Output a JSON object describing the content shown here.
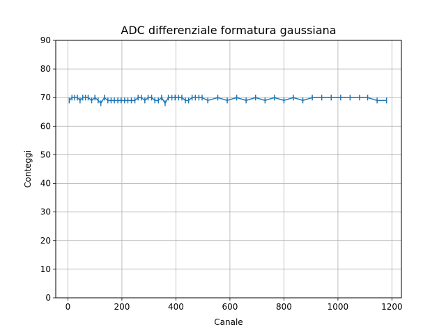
{
  "chart_data": {
    "type": "line",
    "title": "ADC differenziale formatura gaussiana",
    "xlabel": "Canale",
    "ylabel": "Conteggi",
    "xlim": [
      -45,
      1235
    ],
    "ylim": [
      0,
      90
    ],
    "xticks": [
      0,
      200,
      400,
      600,
      800,
      1000,
      1200
    ],
    "yticks": [
      0,
      10,
      20,
      30,
      40,
      50,
      60,
      70,
      80,
      90
    ],
    "grid": true,
    "color": "#1f77b4",
    "error_bars": true,
    "series": [
      {
        "x": [
          5,
          15,
          25,
          35,
          45,
          55,
          65,
          75,
          88,
          100,
          112,
          122,
          135,
          148,
          160,
          172,
          185,
          197,
          210,
          222,
          235,
          248,
          260,
          272,
          285,
          297,
          310,
          322,
          335,
          347,
          360,
          372,
          385,
          397,
          410,
          422,
          435,
          447,
          460,
          472,
          485,
          497,
          518,
          555,
          590,
          625,
          660,
          695,
          730,
          765,
          800,
          835,
          870,
          905,
          940,
          975,
          1010,
          1045,
          1080,
          1110,
          1145,
          1180
        ],
        "y": [
          69,
          70,
          70,
          70,
          69,
          70,
          70,
          70,
          69,
          70,
          69,
          68,
          70,
          69,
          69,
          69,
          69,
          69,
          69,
          69,
          69,
          69,
          70,
          70,
          69,
          70,
          70,
          69,
          69,
          70,
          68,
          70,
          70,
          70,
          70,
          70,
          69,
          69,
          70,
          70,
          70,
          70,
          69,
          70,
          69,
          70,
          69,
          70,
          69,
          70,
          69,
          70,
          69,
          70,
          70,
          70,
          70,
          70,
          70,
          70,
          69,
          69
        ],
        "yerr": 1
      }
    ]
  }
}
